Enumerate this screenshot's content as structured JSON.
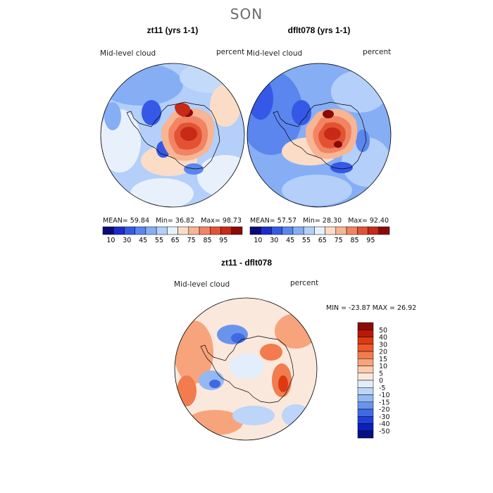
{
  "figure": {
    "season": "SON"
  },
  "colorscales": {
    "abs_colors": [
      "#0a0a7a",
      "#1a2ccc",
      "#3559e6",
      "#5a86ee",
      "#86aef5",
      "#b3cffa",
      "#e8f1fb",
      "#fbdcc6",
      "#f7b593",
      "#f28463",
      "#e25334",
      "#c72a16",
      "#8c0a05"
    ],
    "abs_ticks": [
      "10",
      "30",
      "45",
      "55",
      "65",
      "75",
      "85",
      "95"
    ],
    "diff_colors": [
      "#8c0a05",
      "#b81808",
      "#dd3a14",
      "#ec5a2c",
      "#f27c4e",
      "#f7a47c",
      "#fbcbb0",
      "#fbe8dc",
      "#e3eefb",
      "#bcd5f8",
      "#94b8f2",
      "#6a94ec",
      "#3f6ae4",
      "#1f40d8",
      "#0c1fb8",
      "#050f80"
    ],
    "diff_labels": [
      "50",
      "40",
      "30",
      "20",
      "15",
      "10",
      "5",
      "0",
      "-5",
      "-10",
      "-15",
      "-20",
      "-30",
      "-40",
      "-50"
    ]
  },
  "chart_data": [
    {
      "type": "heatmap",
      "title": "zt11 (yrs 1-1)",
      "variable": "Mid-level cloud",
      "units": "percent",
      "stats": {
        "mean": 59.84,
        "min": 36.82,
        "max": 98.73
      },
      "mean_label": "MEAN=",
      "min_label": "Min=",
      "max_label": "Max=",
      "projection": "south polar stereographic"
    },
    {
      "type": "heatmap",
      "title": "dflt078 (yrs 1-1)",
      "variable": "Mid-level cloud",
      "units": "percent",
      "stats": {
        "mean": 57.57,
        "min": 28.3,
        "max": 92.4
      },
      "mean_label": "MEAN=",
      "min_label": "Min=",
      "max_label": "Max=",
      "projection": "south polar stereographic"
    },
    {
      "type": "heatmap",
      "title": "zt11 - dflt078",
      "variable": "Mid-level cloud",
      "units": "percent",
      "stats": {
        "min": -23.87,
        "max": 26.92
      },
      "min_label": "MIN =",
      "max_label": "MAX =",
      "projection": "south polar stereographic"
    }
  ]
}
